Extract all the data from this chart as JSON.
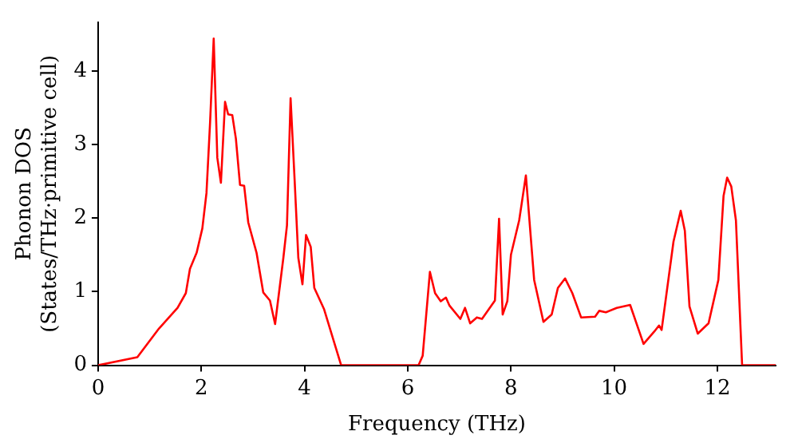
{
  "chart_data": {
    "type": "line",
    "xlabel": "Frequency (THz)",
    "ylabel": "Phonon DOS\n(States/THz·primitive cell)",
    "xlim": [
      0,
      13.13
    ],
    "ylim": [
      0,
      4.66
    ],
    "xticks": [
      0,
      2,
      4,
      6,
      8,
      10,
      12
    ],
    "yticks": [
      0,
      1,
      2,
      3,
      4
    ],
    "grid": false,
    "legend": false,
    "marker": "none",
    "line_style": "solid",
    "x": [
      0,
      0.76,
      1.18,
      1.54,
      1.7,
      1.78,
      1.91,
      2.02,
      2.1,
      2.17,
      2.24,
      2.31,
      2.38,
      2.46,
      2.52,
      2.6,
      2.67,
      2.75,
      2.83,
      2.91,
      3.07,
      3.2,
      3.33,
      3.43,
      3.59,
      3.66,
      3.73,
      3.81,
      3.88,
      3.96,
      4.03,
      4.12,
      4.19,
      4.38,
      4.54,
      4.71,
      6.21,
      6.29,
      6.43,
      6.53,
      6.64,
      6.74,
      6.81,
      7.02,
      7.11,
      7.21,
      7.34,
      7.44,
      7.69,
      7.77,
      7.84,
      7.93,
      8.0,
      8.16,
      8.29,
      8.45,
      8.63,
      8.79,
      8.91,
      9.05,
      9.19,
      9.36,
      9.63,
      9.71,
      9.84,
      10.05,
      10.31,
      10.57,
      10.78,
      10.87,
      10.92,
      11.15,
      11.29,
      11.37,
      11.46,
      11.62,
      11.83,
      12.02,
      12.12,
      12.19,
      12.27,
      12.36,
      12.48,
      13.13
    ],
    "series": [
      {
        "color": "#ff0000",
        "values": [
          0,
          0.11,
          0.5,
          0.78,
          0.98,
          1.31,
          1.53,
          1.86,
          2.34,
          3.3,
          4.44,
          2.82,
          2.48,
          3.58,
          3.41,
          3.4,
          3.08,
          2.45,
          2.44,
          1.94,
          1.53,
          0.99,
          0.88,
          0.56,
          1.46,
          1.9,
          3.63,
          2.49,
          1.46,
          1.1,
          1.77,
          1.61,
          1.05,
          0.76,
          0.39,
          0,
          0,
          0.13,
          1.27,
          0.98,
          0.87,
          0.92,
          0.81,
          0.63,
          0.78,
          0.57,
          0.65,
          0.63,
          0.88,
          1.99,
          0.69,
          0.87,
          1.5,
          1.97,
          2.58,
          1.16,
          0.59,
          0.69,
          1.05,
          1.18,
          0.98,
          0.65,
          0.66,
          0.74,
          0.72,
          0.78,
          0.82,
          0.29,
          0.46,
          0.54,
          0.48,
          1.68,
          2.1,
          1.83,
          0.8,
          0.43,
          0.57,
          1.16,
          2.3,
          2.55,
          2.43,
          1.97,
          0,
          0
        ]
      }
    ]
  }
}
